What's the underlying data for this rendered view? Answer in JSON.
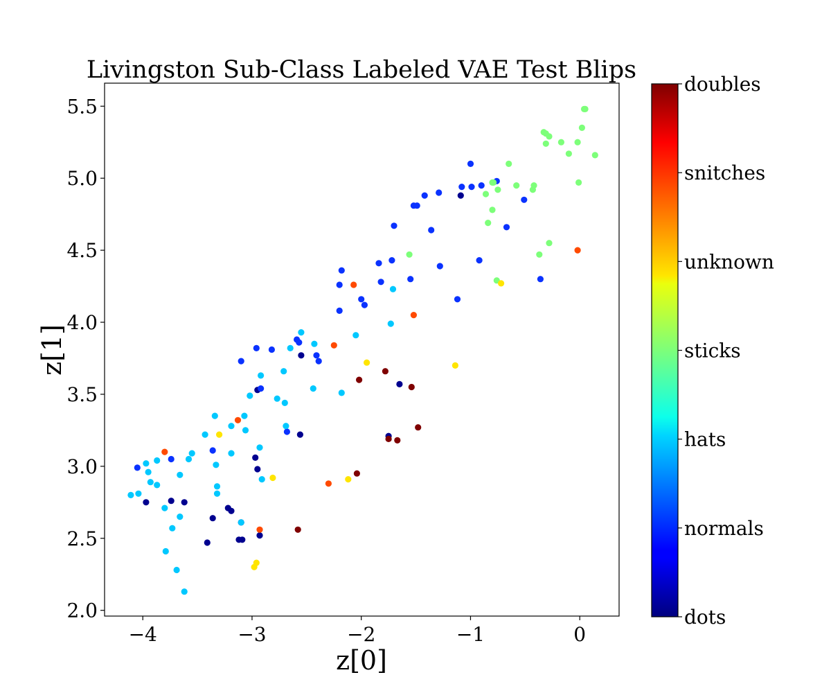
{
  "chart_data": {
    "type": "scatter",
    "title": "Livingston Sub-Class Labeled VAE Test Blips",
    "xlabel": "z[0]",
    "ylabel": "z[1]",
    "xlim": [
      -4.35,
      0.36
    ],
    "ylim": [
      1.96,
      5.66
    ],
    "x_ticks": [
      -4,
      -3,
      -2,
      -1,
      0
    ],
    "x_tick_labels": [
      "−4",
      "−3",
      "−2",
      "−1",
      "0"
    ],
    "y_ticks": [
      2.0,
      2.5,
      3.0,
      3.5,
      4.0,
      4.5,
      5.0,
      5.5
    ],
    "y_tick_labels": [
      "2.0",
      "2.5",
      "3.0",
      "3.5",
      "4.0",
      "4.5",
      "5.0",
      "5.5"
    ],
    "grid": false,
    "colorbar": {
      "colormap": "jet",
      "labels": [
        "dots",
        "normals",
        "hats",
        "sticks",
        "unknown",
        "snitches",
        "doubles"
      ]
    },
    "series": [
      {
        "class": "dots",
        "color": "#00008f",
        "points": [
          [
            -3.97,
            2.75
          ],
          [
            -3.74,
            2.76
          ],
          [
            -3.62,
            2.75
          ],
          [
            -3.22,
            2.71
          ],
          [
            -3.19,
            2.69
          ],
          [
            -3.36,
            2.64
          ],
          [
            -3.41,
            2.47
          ],
          [
            -3.12,
            2.49
          ],
          [
            -3.09,
            2.49
          ],
          [
            -2.93,
            2.52
          ],
          [
            -2.97,
            3.06
          ],
          [
            -2.95,
            2.98
          ],
          [
            -3.1,
            2.61
          ],
          [
            -2.95,
            3.53
          ],
          [
            -2.56,
            3.22
          ],
          [
            -2.55,
            3.77
          ],
          [
            -1.65,
            3.57
          ],
          [
            -1.09,
            4.88
          ],
          [
            -1.75,
            3.21
          ]
        ]
      },
      {
        "class": "normals",
        "color": "#0a32ff",
        "points": [
          [
            -4.05,
            2.99
          ],
          [
            -3.74,
            3.05
          ],
          [
            -3.36,
            3.11
          ],
          [
            -3.1,
            3.73
          ],
          [
            -2.96,
            3.82
          ],
          [
            -2.82,
            3.81
          ],
          [
            -2.92,
            3.54
          ],
          [
            -2.68,
            3.24
          ],
          [
            -2.59,
            3.88
          ],
          [
            -2.57,
            3.86
          ],
          [
            -2.41,
            3.77
          ],
          [
            -2.39,
            3.73
          ],
          [
            -2.2,
            4.08
          ],
          [
            -2.2,
            4.26
          ],
          [
            -2.18,
            4.36
          ],
          [
            -2.0,
            4.16
          ],
          [
            -1.97,
            4.12
          ],
          [
            -1.84,
            4.41
          ],
          [
            -1.82,
            4.28
          ],
          [
            -1.72,
            4.43
          ],
          [
            -1.7,
            4.67
          ],
          [
            -1.55,
            4.3
          ],
          [
            -1.52,
            4.81
          ],
          [
            -1.49,
            4.81
          ],
          [
            -1.42,
            4.88
          ],
          [
            -1.36,
            4.64
          ],
          [
            -1.29,
            4.9
          ],
          [
            -1.28,
            4.39
          ],
          [
            -1.12,
            4.16
          ],
          [
            -1.08,
            4.94
          ],
          [
            -1.0,
            5.1
          ],
          [
            -0.99,
            4.94
          ],
          [
            -0.92,
            4.43
          ],
          [
            -0.9,
            4.95
          ],
          [
            -0.76,
            4.98
          ],
          [
            -0.67,
            4.66
          ],
          [
            -0.51,
            4.85
          ],
          [
            -0.36,
            4.3
          ]
        ]
      },
      {
        "class": "hats",
        "color": "#00c8ff",
        "points": [
          [
            -4.11,
            2.8
          ],
          [
            -4.04,
            2.81
          ],
          [
            -3.97,
            3.02
          ],
          [
            -3.95,
            2.96
          ],
          [
            -3.93,
            2.89
          ],
          [
            -3.87,
            3.04
          ],
          [
            -3.87,
            2.87
          ],
          [
            -3.8,
            2.71
          ],
          [
            -3.79,
            2.41
          ],
          [
            -3.73,
            2.57
          ],
          [
            -3.69,
            2.28
          ],
          [
            -3.66,
            2.94
          ],
          [
            -3.66,
            2.65
          ],
          [
            -3.62,
            2.13
          ],
          [
            -3.58,
            3.05
          ],
          [
            -3.55,
            3.09
          ],
          [
            -3.43,
            3.22
          ],
          [
            -3.34,
            3.35
          ],
          [
            -3.33,
            3.01
          ],
          [
            -3.32,
            2.86
          ],
          [
            -3.32,
            2.81
          ],
          [
            -3.19,
            3.09
          ],
          [
            -3.19,
            3.28
          ],
          [
            -3.07,
            3.35
          ],
          [
            -3.06,
            3.25
          ],
          [
            -3.02,
            3.49
          ],
          [
            -2.93,
            3.13
          ],
          [
            -2.92,
            3.63
          ],
          [
            -2.91,
            2.91
          ],
          [
            -2.77,
            3.47
          ],
          [
            -2.71,
            3.66
          ],
          [
            -2.7,
            3.44
          ],
          [
            -2.69,
            3.28
          ],
          [
            -2.65,
            3.82
          ],
          [
            -2.55,
            3.93
          ],
          [
            -2.44,
            3.54
          ],
          [
            -2.43,
            3.85
          ],
          [
            -2.18,
            3.51
          ],
          [
            -2.05,
            3.91
          ],
          [
            -1.73,
            3.99
          ],
          [
            -1.71,
            4.23
          ],
          [
            -3.1,
            2.61
          ]
        ]
      },
      {
        "class": "sticks",
        "color": "#7dff7a",
        "points": [
          [
            -1.56,
            4.47
          ],
          [
            -0.86,
            4.89
          ],
          [
            -0.84,
            4.69
          ],
          [
            -0.8,
            4.97
          ],
          [
            -0.8,
            4.78
          ],
          [
            -0.79,
            4.97
          ],
          [
            -0.75,
            4.92
          ],
          [
            -0.76,
            4.29
          ],
          [
            -0.65,
            5.1
          ],
          [
            -0.58,
            4.95
          ],
          [
            -0.43,
            4.92
          ],
          [
            -0.42,
            4.95
          ],
          [
            -0.37,
            4.47
          ],
          [
            -0.33,
            5.32
          ],
          [
            -0.31,
            5.24
          ],
          [
            -0.31,
            5.31
          ],
          [
            -0.28,
            5.29
          ],
          [
            -0.28,
            4.55
          ],
          [
            -0.17,
            5.25
          ],
          [
            -0.1,
            5.17
          ],
          [
            -0.02,
            5.25
          ],
          [
            -0.01,
            4.97
          ],
          [
            0.02,
            5.35
          ],
          [
            0.04,
            5.48
          ],
          [
            0.05,
            5.48
          ],
          [
            0.14,
            5.16
          ]
        ]
      },
      {
        "class": "unknown",
        "color": "#ffe500",
        "points": [
          [
            -3.3,
            3.22
          ],
          [
            -2.98,
            2.3
          ],
          [
            -2.96,
            2.33
          ],
          [
            -2.81,
            2.92
          ],
          [
            -2.12,
            2.91
          ],
          [
            -1.95,
            3.72
          ],
          [
            -1.14,
            3.7
          ],
          [
            -0.72,
            4.27
          ]
        ]
      },
      {
        "class": "snitches",
        "color": "#ff4a00",
        "points": [
          [
            -3.8,
            3.1
          ],
          [
            -3.13,
            3.32
          ],
          [
            -2.93,
            2.56
          ],
          [
            -2.3,
            2.88
          ],
          [
            -2.25,
            3.84
          ],
          [
            -2.07,
            4.26
          ],
          [
            -1.52,
            4.05
          ],
          [
            -0.02,
            4.5
          ]
        ]
      },
      {
        "class": "doubles",
        "color": "#7f0000",
        "points": [
          [
            -2.58,
            2.56
          ],
          [
            -2.04,
            2.95
          ],
          [
            -2.02,
            3.6
          ],
          [
            -1.78,
            3.66
          ],
          [
            -1.75,
            3.19
          ],
          [
            -1.67,
            3.18
          ],
          [
            -1.54,
            3.55
          ],
          [
            -1.48,
            3.27
          ]
        ]
      }
    ]
  }
}
